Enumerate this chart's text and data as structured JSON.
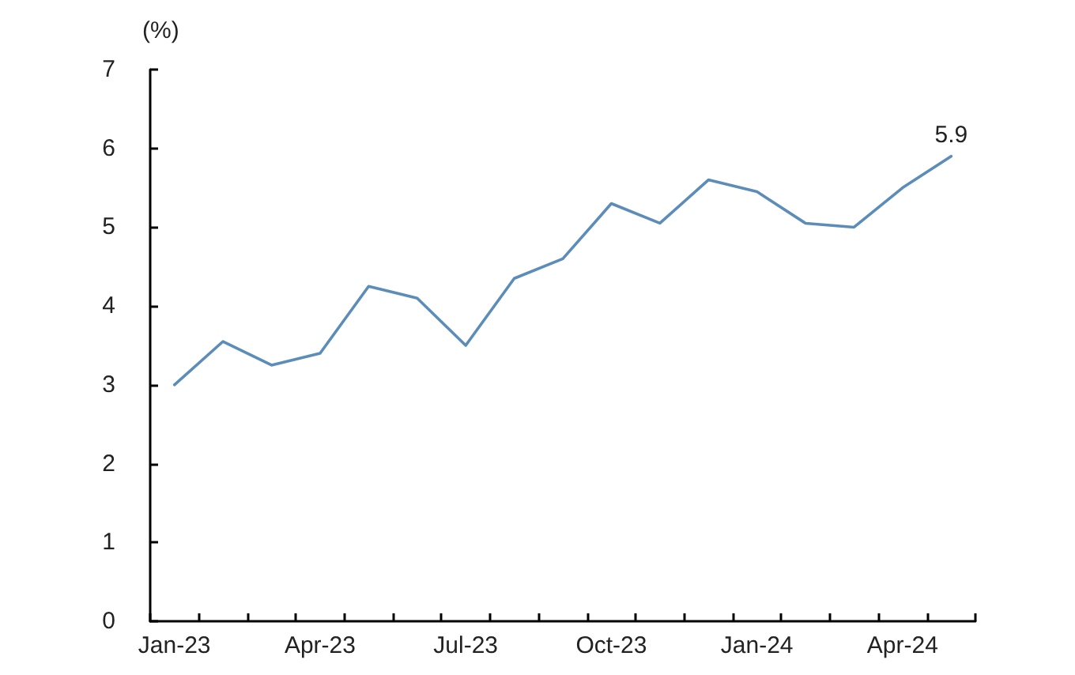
{
  "chart_data": {
    "type": "line",
    "ylabel": "(%)",
    "categories": [
      "Jan-23",
      null,
      null,
      "Apr-23",
      null,
      null,
      "Jul-23",
      null,
      null,
      "Oct-23",
      null,
      null,
      "Jan-24",
      null,
      null,
      "Apr-24",
      null
    ],
    "series": [
      {
        "color": "#5b8db8",
        "values": [
          3.0,
          3.55,
          3.25,
          3.4,
          4.25,
          4.1,
          3.5,
          4.35,
          4.6,
          5.3,
          5.05,
          5.6,
          5.45,
          5.05,
          5.0,
          5.5,
          5.9
        ],
        "value_labels": [
          null,
          null,
          null,
          null,
          null,
          null,
          null,
          null,
          null,
          null,
          null,
          null,
          null,
          null,
          null,
          null,
          "5.9"
        ]
      }
    ],
    "ylim": [
      0,
      7
    ],
    "yticks": [
      0,
      1,
      2,
      3,
      4,
      5,
      6,
      7
    ],
    "marker": "none",
    "line_style": "solid"
  }
}
